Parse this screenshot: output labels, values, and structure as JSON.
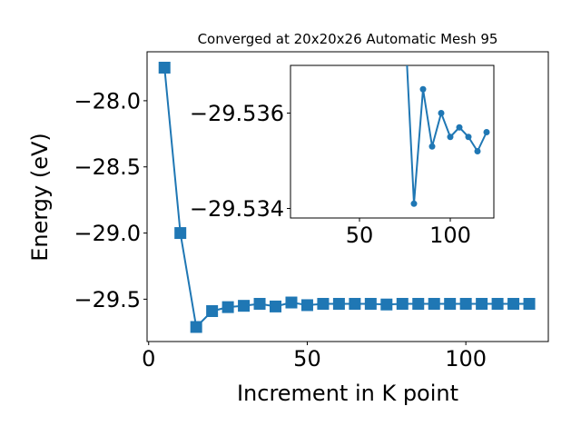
{
  "chart_data": [
    {
      "type": "line",
      "title": "Converged at 20x20x26 Automatic Mesh 95",
      "xlabel": "Increment in K point",
      "ylabel": "Energy (eV)",
      "xlim": [
        -0.5,
        126
      ],
      "ylim": [
        -29.82,
        -27.63
      ],
      "xticks": [
        0,
        50,
        100
      ],
      "xtick_labels": [
        "0",
        "50",
        "100"
      ],
      "yticks": [
        -28.0,
        -28.5,
        -29.0,
        -29.5
      ],
      "ytick_labels": [
        "−28.0",
        "−28.5",
        "−29.0",
        "−29.5"
      ],
      "marker": "square",
      "color": "#1f77b4",
      "x": [
        5,
        10,
        15,
        20,
        25,
        30,
        35,
        40,
        45,
        50,
        55,
        60,
        65,
        70,
        75,
        80,
        85,
        90,
        95,
        100,
        105,
        110,
        115,
        120
      ],
      "y": [
        -27.75,
        -29.0,
        -29.71,
        -29.59,
        -29.56,
        -29.55,
        -29.535,
        -29.555,
        -29.525,
        -29.545,
        -29.535,
        -29.535,
        -29.535,
        -29.535,
        -29.54,
        -29.535,
        -29.535,
        -29.535,
        -29.535,
        -29.535,
        -29.535,
        -29.535,
        -29.535,
        -29.535
      ]
    },
    {
      "type": "line",
      "title": "",
      "xlabel": "",
      "ylabel": "",
      "xlim": [
        12,
        124
      ],
      "ylim": [
        -29.5338,
        -29.537
      ],
      "xticks": [
        50,
        100
      ],
      "xtick_labels": [
        "50",
        "100"
      ],
      "yticks": [
        -29.536,
        -29.534
      ],
      "ytick_labels": [
        "−29.536",
        "−29.534"
      ],
      "marker": "circle",
      "color": "#1f77b4",
      "x": [
        75,
        80,
        85,
        90,
        95,
        100,
        105,
        110,
        115,
        120
      ],
      "y": [
        -29.5379,
        -29.5341,
        -29.5365,
        -29.5353,
        -29.536,
        -29.5355,
        -29.5357,
        -29.5355,
        -29.5352,
        -29.5356
      ]
    }
  ]
}
